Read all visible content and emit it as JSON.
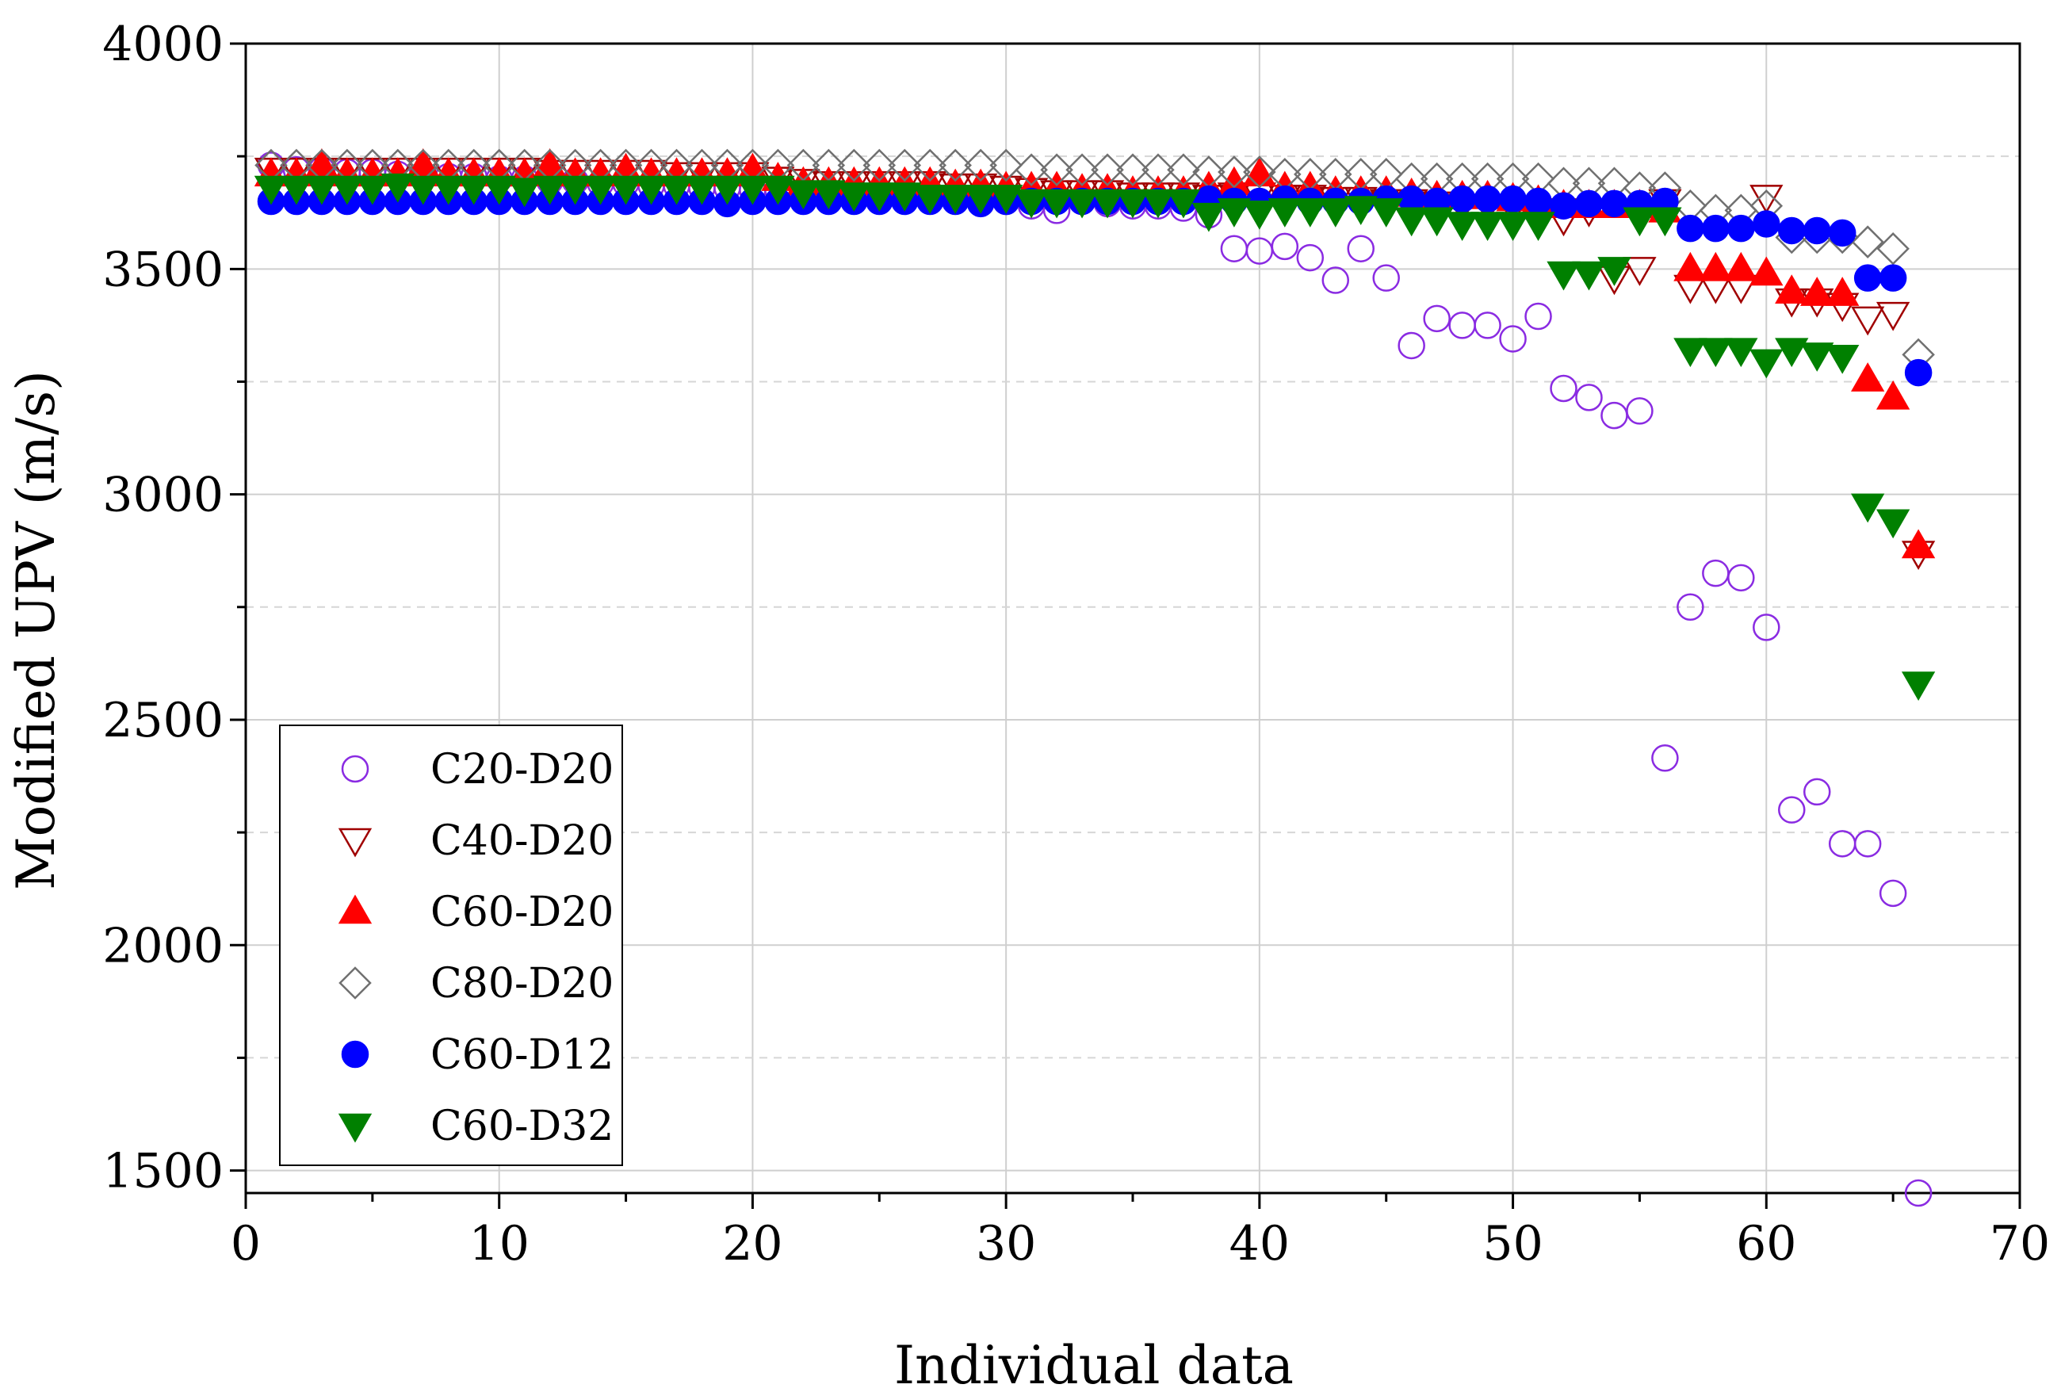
{
  "chart_data": {
    "type": "scatter",
    "title": "",
    "xlabel": "Individual data",
    "ylabel": "Modified UPV (m/s)",
    "xlim": [
      0,
      70
    ],
    "ylim": [
      1450,
      4000
    ],
    "xticks": [
      0,
      10,
      20,
      30,
      40,
      50,
      60,
      70
    ],
    "yticks": [
      1500,
      2000,
      2500,
      3000,
      3500,
      4000
    ],
    "grid": true,
    "legend_position": "bottom-left",
    "series": [
      {
        "name": "C20-D20",
        "marker": "circle-open",
        "color": "#8a2be2",
        "x": [
          1,
          2,
          3,
          4,
          5,
          6,
          7,
          8,
          9,
          10,
          11,
          12,
          13,
          14,
          15,
          16,
          17,
          18,
          19,
          20,
          21,
          22,
          23,
          24,
          25,
          26,
          27,
          28,
          29,
          30,
          31,
          32,
          33,
          34,
          35,
          36,
          37,
          38,
          39,
          40,
          41,
          42,
          43,
          44,
          45,
          46,
          47,
          48,
          49,
          50,
          51,
          52,
          53,
          54,
          55,
          56,
          57,
          58,
          59,
          60,
          61,
          62,
          63,
          64,
          65,
          66
        ],
        "y": [
          3730,
          3720,
          3720,
          3715,
          3715,
          3710,
          3710,
          3705,
          3705,
          3700,
          3700,
          3695,
          3695,
          3690,
          3690,
          3685,
          3685,
          3680,
          3680,
          3675,
          3675,
          3670,
          3670,
          3665,
          3665,
          3660,
          3660,
          3655,
          3655,
          3650,
          3640,
          3630,
          3650,
          3645,
          3640,
          3640,
          3635,
          3620,
          3545,
          3540,
          3550,
          3525,
          3475,
          3545,
          3480,
          3330,
          3390,
          3375,
          3375,
          3345,
          3395,
          3235,
          3215,
          3175,
          3185,
          2415,
          2750,
          2825,
          2815,
          2705,
          2300,
          2340,
          2225,
          2225,
          2115,
          1450
        ]
      },
      {
        "name": "C40-D20",
        "marker": "triangle-down-open",
        "color": "#a00000",
        "x": [
          1,
          2,
          3,
          4,
          5,
          6,
          7,
          8,
          9,
          10,
          11,
          12,
          13,
          14,
          15,
          16,
          17,
          18,
          19,
          20,
          21,
          22,
          23,
          24,
          25,
          26,
          27,
          28,
          29,
          30,
          31,
          32,
          33,
          34,
          35,
          36,
          37,
          38,
          39,
          40,
          41,
          42,
          43,
          44,
          45,
          46,
          47,
          48,
          49,
          50,
          51,
          52,
          53,
          54,
          55,
          56,
          57,
          58,
          59,
          60,
          61,
          62,
          63,
          64,
          65,
          66
        ],
        "y": [
          3720,
          3720,
          3720,
          3720,
          3720,
          3720,
          3720,
          3720,
          3720,
          3720,
          3720,
          3715,
          3715,
          3715,
          3715,
          3715,
          3710,
          3710,
          3710,
          3710,
          3700,
          3695,
          3690,
          3690,
          3690,
          3690,
          3690,
          3685,
          3685,
          3680,
          3675,
          3670,
          3670,
          3670,
          3665,
          3665,
          3665,
          3660,
          3665,
          3665,
          3660,
          3660,
          3655,
          3655,
          3650,
          3650,
          3645,
          3640,
          3640,
          3635,
          3630,
          3610,
          3630,
          3480,
          3500,
          3650,
          3460,
          3460,
          3460,
          3660,
          3430,
          3430,
          3420,
          3390,
          3400,
          2870
        ]
      },
      {
        "name": "C60-D20",
        "marker": "triangle-up-filled",
        "color": "#ff0000",
        "x": [
          1,
          2,
          3,
          4,
          5,
          6,
          7,
          8,
          9,
          10,
          11,
          12,
          13,
          14,
          15,
          16,
          17,
          18,
          19,
          20,
          21,
          22,
          23,
          24,
          25,
          26,
          27,
          28,
          29,
          30,
          31,
          32,
          33,
          34,
          35,
          36,
          37,
          38,
          39,
          40,
          41,
          42,
          43,
          44,
          45,
          46,
          47,
          48,
          49,
          50,
          51,
          52,
          53,
          54,
          55,
          56,
          57,
          58,
          59,
          60,
          61,
          62,
          63,
          64,
          65,
          66
        ],
        "y": [
          3710,
          3710,
          3730,
          3710,
          3710,
          3710,
          3730,
          3710,
          3710,
          3710,
          3710,
          3730,
          3710,
          3710,
          3720,
          3710,
          3710,
          3710,
          3710,
          3720,
          3700,
          3690,
          3690,
          3690,
          3690,
          3690,
          3690,
          3685,
          3685,
          3680,
          3680,
          3680,
          3675,
          3675,
          3670,
          3670,
          3670,
          3680,
          3690,
          3710,
          3680,
          3680,
          3670,
          3670,
          3670,
          3665,
          3660,
          3660,
          3660,
          3655,
          3650,
          3640,
          3640,
          3640,
          3640,
          3630,
          3500,
          3500,
          3500,
          3490,
          3450,
          3445,
          3445,
          3255,
          3215,
          2885
        ]
      },
      {
        "name": "C80-D20",
        "marker": "diamond-open",
        "color": "#707070",
        "x": [
          1,
          2,
          3,
          4,
          5,
          6,
          7,
          8,
          9,
          10,
          11,
          12,
          13,
          14,
          15,
          16,
          17,
          18,
          19,
          20,
          21,
          22,
          23,
          24,
          25,
          26,
          27,
          28,
          29,
          30,
          31,
          32,
          33,
          34,
          35,
          36,
          37,
          38,
          39,
          40,
          41,
          42,
          43,
          44,
          45,
          46,
          47,
          48,
          49,
          50,
          51,
          52,
          53,
          54,
          55,
          56,
          57,
          58,
          59,
          60,
          61,
          62,
          63,
          64,
          65,
          66
        ],
        "y": [
          3730,
          3730,
          3730,
          3730,
          3730,
          3730,
          3730,
          3730,
          3730,
          3730,
          3730,
          3730,
          3730,
          3730,
          3730,
          3730,
          3730,
          3730,
          3730,
          3730,
          3730,
          3730,
          3730,
          3730,
          3730,
          3730,
          3730,
          3730,
          3730,
          3730,
          3720,
          3720,
          3720,
          3720,
          3720,
          3720,
          3720,
          3715,
          3715,
          3715,
          3710,
          3710,
          3710,
          3710,
          3710,
          3700,
          3700,
          3700,
          3700,
          3700,
          3700,
          3690,
          3690,
          3690,
          3680,
          3680,
          3640,
          3630,
          3630,
          3640,
          3570,
          3570,
          3570,
          3560,
          3545,
          3310
        ]
      },
      {
        "name": "C60-D12",
        "marker": "circle-filled",
        "color": "#0000ff",
        "x": [
          1,
          2,
          3,
          4,
          5,
          6,
          7,
          8,
          9,
          10,
          11,
          12,
          13,
          14,
          15,
          16,
          17,
          18,
          19,
          20,
          21,
          22,
          23,
          24,
          25,
          26,
          27,
          28,
          29,
          30,
          31,
          32,
          33,
          34,
          35,
          36,
          37,
          38,
          39,
          40,
          41,
          42,
          43,
          44,
          45,
          46,
          47,
          48,
          49,
          50,
          51,
          52,
          53,
          54,
          55,
          56,
          57,
          58,
          59,
          60,
          61,
          62,
          63,
          64,
          65,
          66
        ],
        "y": [
          3650,
          3650,
          3650,
          3650,
          3650,
          3650,
          3650,
          3650,
          3650,
          3650,
          3650,
          3650,
          3650,
          3650,
          3650,
          3650,
          3650,
          3650,
          3645,
          3650,
          3650,
          3650,
          3650,
          3650,
          3650,
          3650,
          3650,
          3650,
          3645,
          3650,
          3650,
          3650,
          3650,
          3650,
          3650,
          3650,
          3650,
          3655,
          3650,
          3650,
          3655,
          3650,
          3650,
          3650,
          3655,
          3655,
          3650,
          3655,
          3655,
          3655,
          3650,
          3640,
          3645,
          3645,
          3645,
          3650,
          3590,
          3590,
          3590,
          3600,
          3585,
          3585,
          3580,
          3480,
          3480,
          3270
        ]
      },
      {
        "name": "C60-D32",
        "marker": "triangle-down-filled",
        "color": "#008000",
        "x": [
          1,
          2,
          3,
          4,
          5,
          6,
          7,
          8,
          9,
          10,
          11,
          12,
          13,
          14,
          15,
          16,
          17,
          18,
          19,
          20,
          21,
          22,
          23,
          24,
          25,
          26,
          27,
          28,
          29,
          30,
          31,
          32,
          33,
          34,
          35,
          36,
          37,
          38,
          39,
          40,
          41,
          42,
          43,
          44,
          45,
          46,
          47,
          48,
          49,
          50,
          51,
          52,
          53,
          54,
          55,
          56,
          57,
          58,
          59,
          60,
          61,
          62,
          63,
          64,
          65,
          66
        ],
        "y": [
          3680,
          3680,
          3680,
          3680,
          3680,
          3685,
          3680,
          3680,
          3680,
          3680,
          3675,
          3680,
          3680,
          3680,
          3680,
          3680,
          3680,
          3680,
          3680,
          3680,
          3680,
          3670,
          3670,
          3665,
          3665,
          3665,
          3660,
          3660,
          3660,
          3660,
          3650,
          3650,
          3650,
          3650,
          3650,
          3650,
          3650,
          3620,
          3630,
          3625,
          3630,
          3630,
          3630,
          3635,
          3630,
          3610,
          3610,
          3600,
          3600,
          3600,
          3600,
          3490,
          3490,
          3500,
          3610,
          3610,
          3320,
          3320,
          3320,
          3295,
          3320,
          3310,
          3305,
          2975,
          2940,
          2580
        ]
      }
    ]
  }
}
